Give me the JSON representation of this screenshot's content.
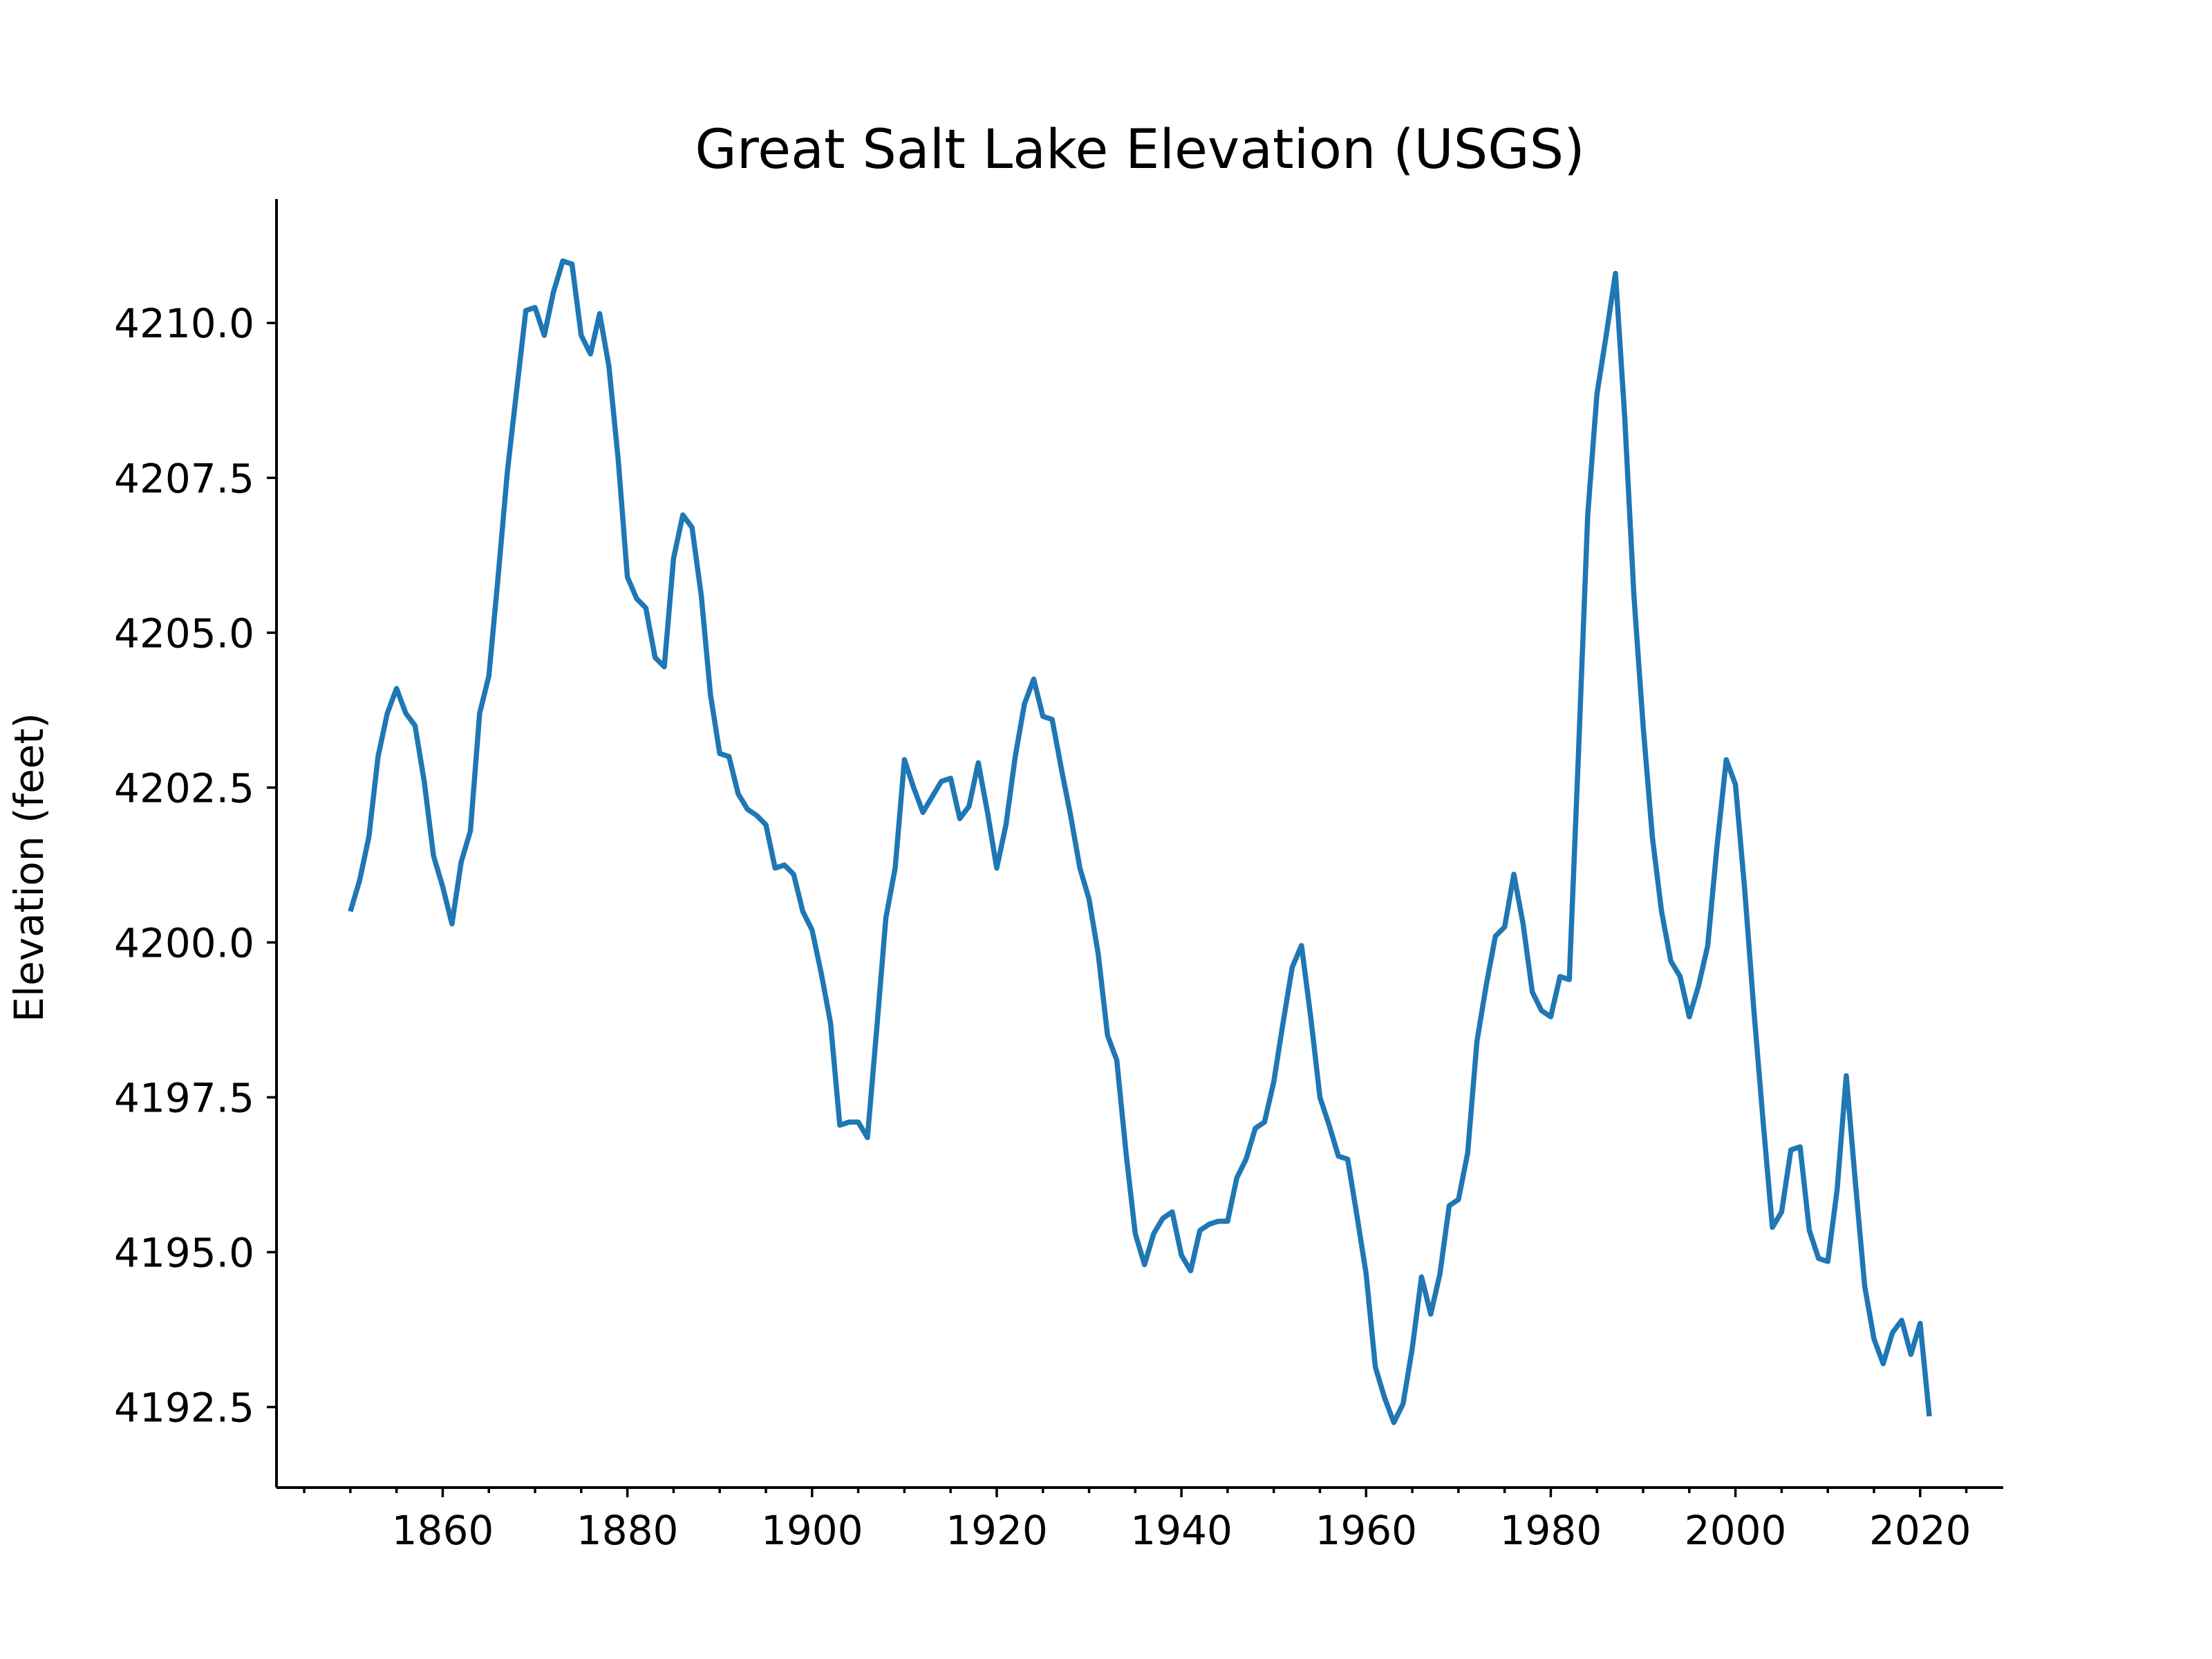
{
  "chart_data": {
    "type": "line",
    "title": "Great Salt Lake Elevation (USGS)",
    "xlabel": "",
    "ylabel": "Elevation (feet)",
    "xlim": [
      1842,
      2029
    ],
    "ylim": [
      4191.2,
      4212.0
    ],
    "x_major_ticks": [
      1860,
      1880,
      1900,
      1920,
      1940,
      1960,
      1980,
      2000,
      2020
    ],
    "x_tick_labels": [
      "1860",
      "1880",
      "1900",
      "1920",
      "1940",
      "1960",
      "1980",
      "2000",
      "2020"
    ],
    "x_minor_step": 5,
    "y_ticks": [
      4192.5,
      4195.0,
      4197.5,
      4200.0,
      4202.5,
      4205.0,
      4207.5,
      4210.0
    ],
    "y_tick_labels": [
      "4192.5",
      "4195.0",
      "4197.5",
      "4200.0",
      "4202.5",
      "4205.0",
      "4207.5",
      "4210.0"
    ],
    "grid": false,
    "series": [
      {
        "color": "#1f77b4",
        "x": [
          1850,
          1851,
          1852,
          1853,
          1854,
          1855,
          1856,
          1857,
          1858,
          1859,
          1860,
          1861,
          1862,
          1863,
          1864,
          1865,
          1866,
          1867,
          1868,
          1869,
          1870,
          1871,
          1872,
          1873,
          1874,
          1875,
          1876,
          1877,
          1878,
          1879,
          1880,
          1881,
          1882,
          1883,
          1884,
          1885,
          1886,
          1887,
          1888,
          1889,
          1890,
          1891,
          1892,
          1893,
          1894,
          1895,
          1896,
          1897,
          1898,
          1899,
          1900,
          1901,
          1902,
          1903,
          1904,
          1905,
          1906,
          1907,
          1908,
          1909,
          1910,
          1911,
          1912,
          1913,
          1914,
          1915,
          1916,
          1917,
          1918,
          1919,
          1920,
          1921,
          1922,
          1923,
          1924,
          1925,
          1926,
          1927,
          1928,
          1929,
          1930,
          1931,
          1932,
          1933,
          1934,
          1935,
          1936,
          1937,
          1938,
          1939,
          1940,
          1941,
          1942,
          1943,
          1944,
          1945,
          1946,
          1947,
          1948,
          1949,
          1950,
          1951,
          1952,
          1953,
          1954,
          1955,
          1956,
          1957,
          1958,
          1959,
          1960,
          1961,
          1962,
          1963,
          1964,
          1965,
          1966,
          1967,
          1968,
          1969,
          1970,
          1971,
          1972,
          1973,
          1974,
          1975,
          1976,
          1977,
          1978,
          1979,
          1980,
          1981,
          1982,
          1983,
          1984,
          1985,
          1986,
          1987,
          1988,
          1989,
          1990,
          1991,
          1992,
          1993,
          1994,
          1995,
          1996,
          1997,
          1998,
          1999,
          2000,
          2001,
          2002,
          2003,
          2004,
          2005,
          2006,
          2007,
          2008,
          2009,
          2010,
          2011,
          2012,
          2013,
          2014,
          2015,
          2016,
          2017,
          2018,
          2019,
          2020,
          2021
        ],
        "y": [
          4200.5,
          4201.0,
          4201.7,
          4203.0,
          4203.7,
          4204.1,
          4203.7,
          4203.5,
          4202.6,
          4201.4,
          4200.9,
          4200.3,
          4201.3,
          4201.8,
          4203.7,
          4204.3,
          4205.9,
          4207.6,
          4208.9,
          4210.2,
          4210.25,
          4209.8,
          4210.5,
          4211.0,
          4210.95,
          4209.8,
          4209.5,
          4210.15,
          4209.3,
          4207.8,
          4205.9,
          4205.55,
          4205.4,
          4204.6,
          4204.45,
          4206.2,
          4206.9,
          4206.7,
          4205.6,
          4204.0,
          4203.05,
          4203.0,
          4202.4,
          4202.15,
          4202.05,
          4201.9,
          4201.2,
          4201.25,
          4201.1,
          4200.5,
          4200.2,
          4199.5,
          4198.7,
          4197.05,
          4197.1,
          4197.1,
          4196.85,
          4198.6,
          4200.4,
          4201.2,
          4202.95,
          4202.5,
          4202.1,
          4202.35,
          4202.6,
          4202.65,
          4202.0,
          4202.2,
          4202.9,
          4202.1,
          4201.2,
          4201.9,
          4203.0,
          4203.85,
          4204.25,
          4203.65,
          4203.6,
          4202.8,
          4202.05,
          4201.2,
          4200.7,
          4199.8,
          4198.5,
          4198.1,
          4196.6,
          4195.3,
          4194.8,
          4195.3,
          4195.55,
          4195.65,
          4194.95,
          4194.7,
          4195.35,
          4195.45,
          4195.5,
          4195.5,
          4196.2,
          4196.5,
          4197.0,
          4197.1,
          4197.75,
          4198.7,
          4199.6,
          4199.95,
          4198.8,
          4197.5,
          4197.05,
          4196.55,
          4196.5,
          4195.6,
          4194.65,
          4193.15,
          4192.65,
          4192.25,
          4192.55,
          4193.45,
          4194.6,
          4194.0,
          4194.65,
          4195.75,
          4195.85,
          4196.6,
          4198.4,
          4199.3,
          4200.1,
          4200.25,
          4201.1,
          4200.3,
          4199.2,
          4198.9,
          4198.8,
          4199.45,
          4199.4,
          4203.05,
          4206.9,
          4208.85,
          4209.8,
          4210.8,
          4208.5,
          4205.6,
          4203.5,
          4201.7,
          4200.5,
          4199.7,
          4199.45,
          4198.8,
          4199.3,
          4199.95,
          4201.55,
          4202.95,
          4202.55,
          4200.85,
          4198.9,
          4197.1,
          4195.4,
          4195.65,
          4196.65,
          4196.7,
          4195.35,
          4194.9,
          4194.85,
          4196.0,
          4197.85,
          4196.1,
          4194.45,
          4193.6,
          4193.2,
          4193.7,
          4193.9,
          4193.35,
          4193.85,
          4192.35
        ]
      }
    ]
  }
}
